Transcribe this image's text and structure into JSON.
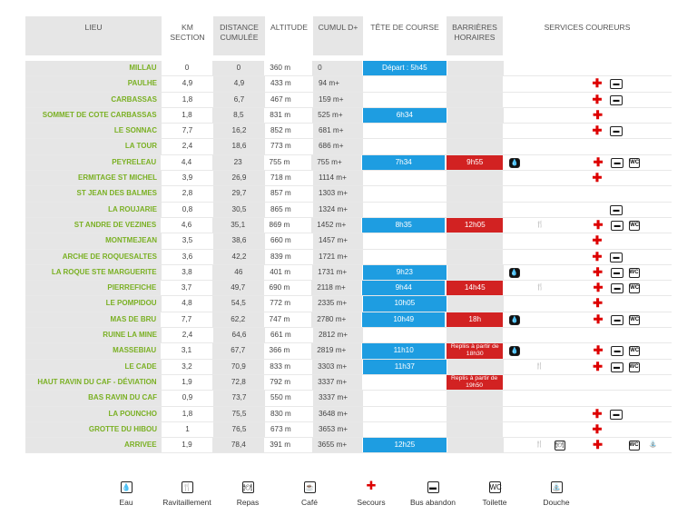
{
  "headers": [
    "LIEU",
    "KM\nSECTION",
    "DISTANCE\nCUMULÉE",
    "ALTITUDE",
    "CUMUL D+",
    "TÊTE DE COURSE",
    "BARRIÈRES\nHORAIRES",
    "SERVICES COUREURS"
  ],
  "rows": [
    {
      "lieu": "MILLAU",
      "km": "0",
      "dist": "0",
      "alt": "360 m",
      "cumul": "0",
      "tete": "Départ : 5h45",
      "bar": "",
      "s": []
    },
    {
      "lieu": "PAULHE",
      "km": "4,9",
      "dist": "4,9",
      "alt": "433 m",
      "cumul": "94 m+",
      "tete": "",
      "bar": "",
      "s": [
        "secours",
        "bus"
      ]
    },
    {
      "lieu": "CARBASSAS",
      "km": "1,8",
      "dist": "6,7",
      "alt": "467 m",
      "cumul": "159 m+",
      "tete": "",
      "bar": "",
      "s": [
        "secours",
        "bus"
      ]
    },
    {
      "lieu": "SOMMET DE COTE CARBASSAS",
      "km": "1,8",
      "dist": "8,5",
      "alt": "831 m",
      "cumul": "525 m+",
      "tete": "6h34",
      "bar": "",
      "s": [
        "secours"
      ]
    },
    {
      "lieu": "LE SONNAC",
      "km": "7,7",
      "dist": "16,2",
      "alt": "852 m",
      "cumul": "681 m+",
      "tete": "",
      "bar": "",
      "s": [
        "secours",
        "bus"
      ]
    },
    {
      "lieu": "LA TOUR",
      "km": "2,4",
      "dist": "18,6",
      "alt": "773 m",
      "cumul": "686 m+",
      "tete": "",
      "bar": "",
      "s": []
    },
    {
      "lieu": "PEYRELEAU",
      "km": "4,4",
      "dist": "23",
      "alt": "755 m",
      "cumul": "755 m+",
      "tete": "7h34",
      "bar": "9h55",
      "s": [
        "eau",
        "secours",
        "bus",
        "wc"
      ]
    },
    {
      "lieu": "ERMITAGE ST MICHEL",
      "km": "3,9",
      "dist": "26,9",
      "alt": "718 m",
      "cumul": "1114 m+",
      "tete": "",
      "bar": "",
      "s": [
        "secours"
      ]
    },
    {
      "lieu": "ST JEAN DES BALMES",
      "km": "2,8",
      "dist": "29,7",
      "alt": "857 m",
      "cumul": "1303 m+",
      "tete": "",
      "bar": "",
      "s": []
    },
    {
      "lieu": "LA ROUJARIE",
      "km": "0,8",
      "dist": "30,5",
      "alt": "865 m",
      "cumul": "1324 m+",
      "tete": "",
      "bar": "",
      "s": [
        "bus"
      ]
    },
    {
      "lieu": "ST ANDRE DE VEZINES",
      "km": "4,6",
      "dist": "35,1",
      "alt": "869 m",
      "cumul": "1452 m+",
      "tete": "8h35",
      "bar": "12h05",
      "s": [
        "rav",
        "secours",
        "bus",
        "wc"
      ]
    },
    {
      "lieu": "MONTMEJEAN",
      "km": "3,5",
      "dist": "38,6",
      "alt": "660 m",
      "cumul": "1457 m+",
      "tete": "",
      "bar": "",
      "s": [
        "secours"
      ]
    },
    {
      "lieu": "ARCHE DE ROQUESALTES",
      "km": "3,6",
      "dist": "42,2",
      "alt": "839 m",
      "cumul": "1721 m+",
      "tete": "",
      "bar": "",
      "s": [
        "secours",
        "bus"
      ]
    },
    {
      "lieu": "LA ROQUE STE MARGUERITE",
      "km": "3,8",
      "dist": "46",
      "alt": "401 m",
      "cumul": "1731 m+",
      "tete": "9h23",
      "bar": "",
      "s": [
        "eau",
        "secours",
        "bus",
        "wc"
      ]
    },
    {
      "lieu": "PIERREFICHE",
      "km": "3,7",
      "dist": "49,7",
      "alt": "690 m",
      "cumul": "2118 m+",
      "tete": "9h44",
      "bar": "14h45",
      "s": [
        "rav",
        "secours",
        "bus",
        "wc"
      ]
    },
    {
      "lieu": "LE POMPIDOU",
      "km": "4,8",
      "dist": "54,5",
      "alt": "772 m",
      "cumul": "2335 m+",
      "tete": "10h05",
      "bar": "",
      "s": [
        "secours"
      ]
    },
    {
      "lieu": "MAS DE BRU",
      "km": "7,7",
      "dist": "62,2",
      "alt": "747 m",
      "cumul": "2780 m+",
      "tete": "10h49",
      "bar": "18h",
      "s": [
        "eau",
        "secours",
        "bus",
        "wc"
      ]
    },
    {
      "lieu": "RUINE LA MINE",
      "km": "2,4",
      "dist": "64,6",
      "alt": "661 m",
      "cumul": "2812 m+",
      "tete": "",
      "bar": "",
      "s": []
    },
    {
      "lieu": "MASSEBIAU",
      "km": "3,1",
      "dist": "67,7",
      "alt": "366 m",
      "cumul": "2819 m+",
      "tete": "11h10",
      "bar": "Repliis à partir de\n18h30",
      "s": [
        "eau",
        "secours",
        "bus",
        "wc"
      ]
    },
    {
      "lieu": "LE CADE",
      "km": "3,2",
      "dist": "70,9",
      "alt": "833 m",
      "cumul": "3303 m+",
      "tete": "11h37",
      "bar": "",
      "s": [
        "rav",
        "secours",
        "bus",
        "wc"
      ]
    },
    {
      "lieu": "HAUT RAVIN DU CAF - DÉVIATION",
      "km": "1,9",
      "dist": "72,8",
      "alt": "792 m",
      "cumul": "3337 m+",
      "tete": "",
      "bar": "Replis à partir de\n19h50",
      "s": []
    },
    {
      "lieu": "BAS RAVIN DU CAF",
      "km": "0,9",
      "dist": "73,7",
      "alt": "550 m",
      "cumul": "3337 m+",
      "tete": "",
      "bar": "",
      "s": []
    },
    {
      "lieu": "LA POUNCHO",
      "km": "1,8",
      "dist": "75,5",
      "alt": "830 m",
      "cumul": "3648 m+",
      "tete": "",
      "bar": "",
      "s": [
        "secours",
        "bus"
      ]
    },
    {
      "lieu": "GROTTE DU HIBOU",
      "km": "1",
      "dist": "76,5",
      "alt": "673 m",
      "cumul": "3653 m+",
      "tete": "",
      "bar": "",
      "s": [
        "secours"
      ]
    },
    {
      "lieu": "ARRIVEE",
      "km": "1,9",
      "dist": "78,4",
      "alt": "391 m",
      "cumul": "3655 m+",
      "tete": "12h25",
      "bar": "",
      "s": [
        "rav",
        "repas",
        "secours",
        "wc",
        "douche"
      ]
    }
  ],
  "legend": [
    {
      "key": "eau",
      "label": "Eau",
      "glyph": "💧"
    },
    {
      "key": "rav",
      "label": "Ravitaillement",
      "glyph": "🍴"
    },
    {
      "key": "repas",
      "label": "Repas",
      "glyph": "🍽"
    },
    {
      "key": "cafe",
      "label": "Café",
      "glyph": "☕"
    },
    {
      "key": "secours",
      "label": "Secours",
      "glyph": "✚"
    },
    {
      "key": "bus",
      "label": "Bus abandon",
      "glyph": "▬"
    },
    {
      "key": "wc",
      "label": "Toilette",
      "glyph": "WC"
    },
    {
      "key": "douche",
      "label": "Douche",
      "glyph": "⛲"
    }
  ],
  "colors": {
    "green": "#7ab023",
    "blue": "#1e9de1",
    "red": "#d22222",
    "header_bg": "#e6e6e6"
  }
}
